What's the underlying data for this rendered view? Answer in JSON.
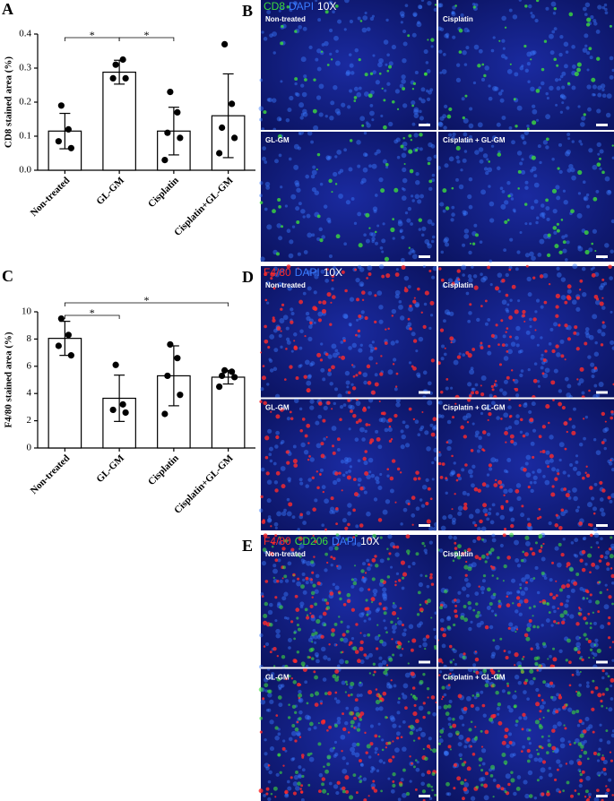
{
  "chart_data": [
    {
      "type": "bar",
      "panel": "A",
      "ylabel": "CD8  stained area (%)",
      "categories": [
        "Non-treated",
        "GL-GM",
        "Cisplatin",
        "Cisplatin+GL-GM"
      ],
      "values": [
        0.115,
        0.288,
        0.115,
        0.16
      ],
      "errors": [
        0.052,
        0.035,
        0.07,
        0.123
      ],
      "points": [
        [
          0.19,
          0.12,
          0.085,
          0.065
        ],
        [
          0.31,
          0.325,
          0.27,
          0.27
        ],
        [
          0.23,
          0.17,
          0.11,
          0.095,
          0.03
        ],
        [
          0.37,
          0.195,
          0.125,
          0.095,
          0.05
        ]
      ],
      "color": "#ffffff",
      "ylim": [
        0,
        0.4
      ],
      "yticks": [
        {
          "value": 0,
          "label": "0.0"
        },
        0.1,
        0.2,
        0.3,
        0.4
      ],
      "significance": [
        {
          "from": "Non-treated",
          "to": "GL-GM",
          "label": "*"
        },
        {
          "from": "GL-GM",
          "to": "Cisplatin",
          "label": "*"
        }
      ]
    },
    {
      "type": "bar",
      "panel": "C",
      "ylabel": "F4/80 stained area (%)",
      "categories": [
        "Non-treated",
        "GL-GM",
        "Cisplatin",
        "Cisplatin+GL-GM"
      ],
      "values": [
        8.05,
        3.65,
        5.3,
        5.2
      ],
      "errors": [
        1.25,
        1.7,
        2.2,
        0.5
      ],
      "points": [
        [
          9.5,
          8.3,
          7.5,
          6.8
        ],
        [
          6.1,
          3.2,
          2.8,
          2.6
        ],
        [
          7.6,
          6.6,
          5.3,
          3.9,
          2.5
        ],
        [
          5.7,
          5.6,
          5.3,
          5.2,
          4.5
        ]
      ],
      "color": "#ffffff",
      "ylim": [
        0,
        10
      ],
      "yticks": [
        0,
        2,
        4,
        6,
        8,
        10
      ],
      "significance": [
        {
          "from": "Non-treated",
          "to": "GL-GM",
          "label": "*"
        },
        {
          "from": "Non-treated",
          "to": "Cisplatin+GL-GM",
          "label": "*"
        }
      ]
    }
  ],
  "image_panels": [
    {
      "panel": "B",
      "stains": [
        {
          "name": "CD8",
          "color": "#3ddc3d"
        },
        {
          "name": "DAPI",
          "color": "#3a7bff"
        },
        {
          "name": "10X",
          "color": "#ffffff"
        }
      ],
      "tiles": [
        "Non-treated",
        "Cisplatin",
        "GL-GM",
        "Cisplatin + GL-GM"
      ]
    },
    {
      "panel": "D",
      "stains": [
        {
          "name": "F4/80",
          "color": "#ff2a2a"
        },
        {
          "name": "DAPI",
          "color": "#3a7bff"
        },
        {
          "name": "10X",
          "color": "#ffffff"
        }
      ],
      "tiles": [
        "Non-treated",
        "Cisplatin",
        "GL-GM",
        "Cisplatin + GL-GM"
      ]
    },
    {
      "panel": "E",
      "stains": [
        {
          "name": "F4/80",
          "color": "#ff2a2a"
        },
        {
          "name": "CD206",
          "color": "#3ddc3d"
        },
        {
          "name": "DAPI",
          "color": "#3a7bff"
        },
        {
          "name": "10X",
          "color": "#ffffff"
        }
      ],
      "tiles": [
        "Non-treated",
        "Cisplatin",
        "GL-GM",
        "Cisplatin + GL-GM"
      ]
    }
  ]
}
